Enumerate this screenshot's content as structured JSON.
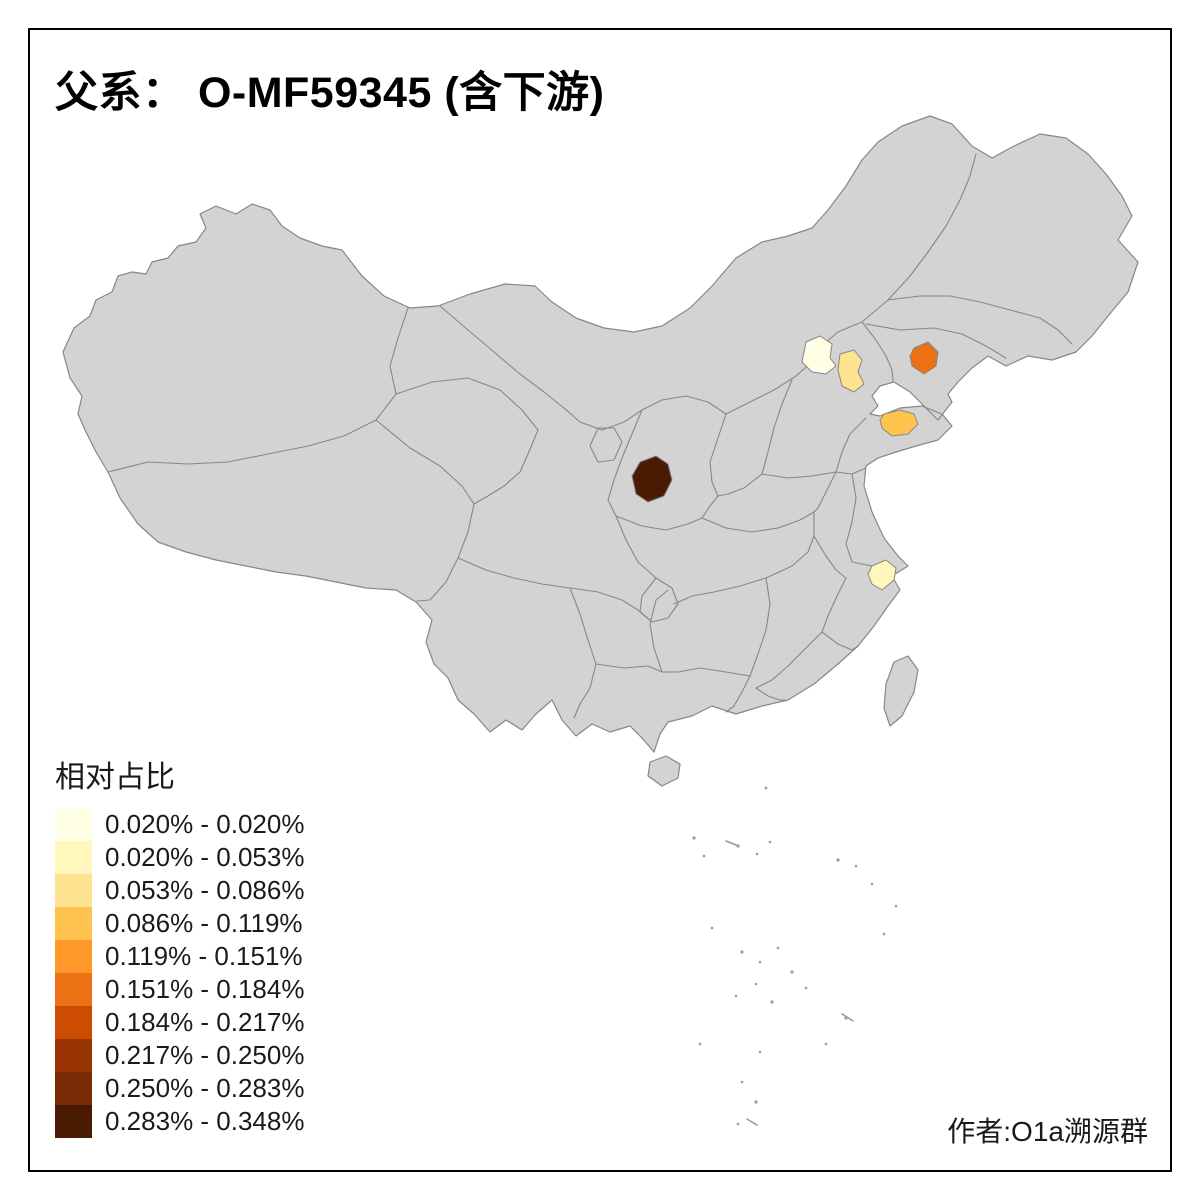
{
  "title": "父系： O-MF59345 (含下游)",
  "author": "作者:O1a溯源群",
  "legend": {
    "title": "相对占比",
    "entries": [
      {
        "label": "0.020% - 0.020%",
        "color": "#ffffe5"
      },
      {
        "label": "0.020% - 0.053%",
        "color": "#fff7bc"
      },
      {
        "label": "0.053% - 0.086%",
        "color": "#fee391"
      },
      {
        "label": "0.086% - 0.119%",
        "color": "#fec44f"
      },
      {
        "label": "0.119% - 0.151%",
        "color": "#fe9929"
      },
      {
        "label": "0.151% - 0.184%",
        "color": "#ec7014"
      },
      {
        "label": "0.184% - 0.217%",
        "color": "#cc4c02"
      },
      {
        "label": "0.217% - 0.250%",
        "color": "#993404"
      },
      {
        "label": "0.250% - 0.283%",
        "color": "#7a2b06"
      },
      {
        "label": "0.283% - 0.348%",
        "color": "#4a1a03"
      }
    ]
  },
  "map": {
    "land_fill": "#d3d3d3",
    "border_color": "#878787",
    "background": "#ffffff",
    "regions": [
      {
        "id": "beijing-area",
        "color": "#ffffe5",
        "bin": "0.020% - 0.020%"
      },
      {
        "id": "tianjin-area",
        "color": "#fee391",
        "bin": "0.053% - 0.086%"
      },
      {
        "id": "liaoning-area",
        "color": "#ec7014",
        "bin": "0.151% - 0.184%"
      },
      {
        "id": "shandong-area",
        "color": "#fec44f",
        "bin": "0.086% - 0.119%"
      },
      {
        "id": "shaanxi-area",
        "color": "#4a1a03",
        "bin": "0.283% - 0.348%"
      },
      {
        "id": "shanghai-area",
        "color": "#fff7bc",
        "bin": "0.020% - 0.053%"
      }
    ]
  },
  "chart_data": {
    "type": "choropleth",
    "title": "父系： O-MF59345 (含下游)",
    "legend_title": "相对占比",
    "legend_position": "bottom-left",
    "base_region_fill": "#d3d3d3",
    "annotation": "作者:O1a溯源群",
    "bins": [
      {
        "range": "0.020% - 0.020%",
        "color": "#ffffe5"
      },
      {
        "range": "0.020% - 0.053%",
        "color": "#fff7bc"
      },
      {
        "range": "0.053% - 0.086%",
        "color": "#fee391"
      },
      {
        "range": "0.086% - 0.119%",
        "color": "#fec44f"
      },
      {
        "range": "0.119% - 0.151%",
        "color": "#fe9929"
      },
      {
        "range": "0.151% - 0.184%",
        "color": "#ec7014"
      },
      {
        "range": "0.184% - 0.217%",
        "color": "#cc4c02"
      },
      {
        "range": "0.217% - 0.250%",
        "color": "#993404"
      },
      {
        "range": "0.250% - 0.283%",
        "color": "#7a2b06"
      },
      {
        "range": "0.283% - 0.348%",
        "color": "#4a1a03"
      }
    ],
    "highlighted_regions": [
      {
        "id": "beijing-area",
        "bin": "0.020% - 0.020%",
        "color": "#ffffe5"
      },
      {
        "id": "tianjin-area",
        "bin": "0.053% - 0.086%",
        "color": "#fee391"
      },
      {
        "id": "liaoning-area",
        "bin": "0.151% - 0.184%",
        "color": "#ec7014"
      },
      {
        "id": "shandong-area",
        "bin": "0.086% - 0.119%",
        "color": "#fec44f"
      },
      {
        "id": "shaanxi-area",
        "bin": "0.283% - 0.348%",
        "color": "#4a1a03"
      },
      {
        "id": "shanghai-area",
        "bin": "0.020% - 0.053%",
        "color": "#fff7bc"
      }
    ]
  }
}
